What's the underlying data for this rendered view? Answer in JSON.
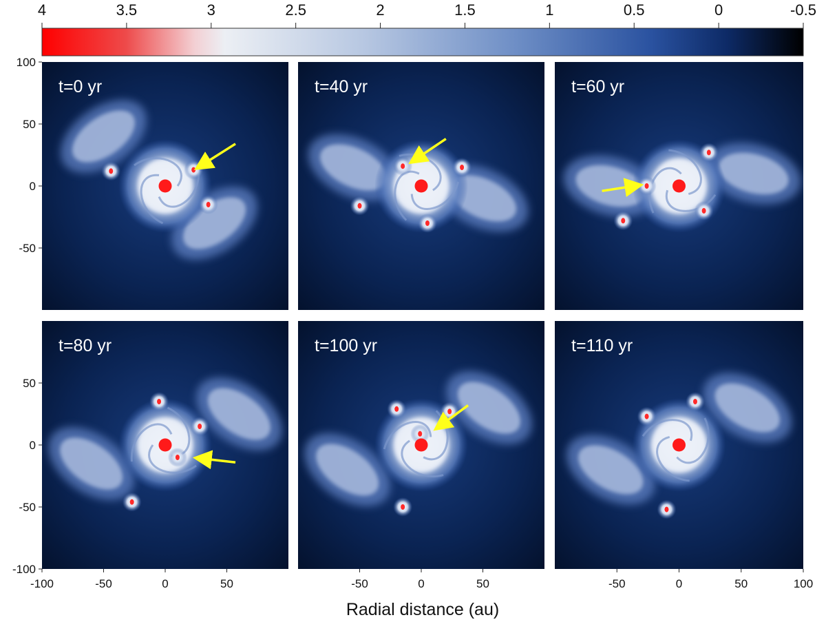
{
  "colorbar": {
    "tick_labels": [
      "4",
      "3.5",
      "3",
      "2.5",
      "2",
      "1.5",
      "1",
      "0.5",
      "0",
      "-0.5"
    ],
    "range": [
      4,
      -0.5
    ],
    "colors": {
      "high": "#ff0000",
      "mid": "#e8eef6",
      "low_blue": "#2a52a0",
      "lowest": "#000000"
    }
  },
  "xlabel": "Radial distance (au)",
  "axis_ticks": {
    "y_top_row": [
      "100",
      "50",
      "0",
      "-50"
    ],
    "y_bottom_row": [
      "50",
      "0",
      "-50",
      "-100"
    ],
    "x_left": [
      "-100",
      "-50",
      "0",
      "50"
    ],
    "x_middle": [
      "-50",
      "0",
      "50"
    ],
    "x_right": [
      "-50",
      "0",
      "50",
      "100"
    ]
  },
  "panels": [
    {
      "label": "t=0 yr"
    },
    {
      "label": "t=40 yr"
    },
    {
      "label": "t=60 yr"
    },
    {
      "label": "t=80 yr"
    },
    {
      "label": "t=100 yr"
    },
    {
      "label": "t=110 yr"
    }
  ],
  "colors": {
    "panel_bg": "#071a3d",
    "arrow": "#ffff1a",
    "star": "#ff1a1a",
    "disc": "#e9eef7"
  }
}
